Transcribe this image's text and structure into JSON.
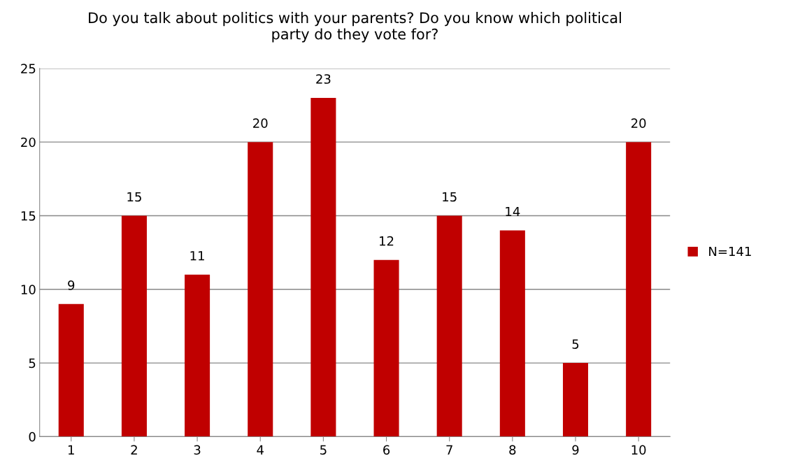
{
  "chart_data": {
    "type": "bar",
    "title": "Do you talk about politics with your parents? Do you know which political\nparty do they vote for?",
    "categories": [
      "1",
      "2",
      "3",
      "4",
      "5",
      "6",
      "7",
      "8",
      "9",
      "10"
    ],
    "series": [
      {
        "name": "N=141",
        "color": "#c00000",
        "values": [
          9,
          15,
          11,
          20,
          23,
          12,
          15,
          14,
          5,
          20
        ]
      }
    ],
    "ylim": [
      0,
      25
    ],
    "yticks": [
      0,
      5,
      10,
      15,
      20,
      25
    ],
    "grid": "y",
    "legend": "right",
    "data_labels": true
  }
}
